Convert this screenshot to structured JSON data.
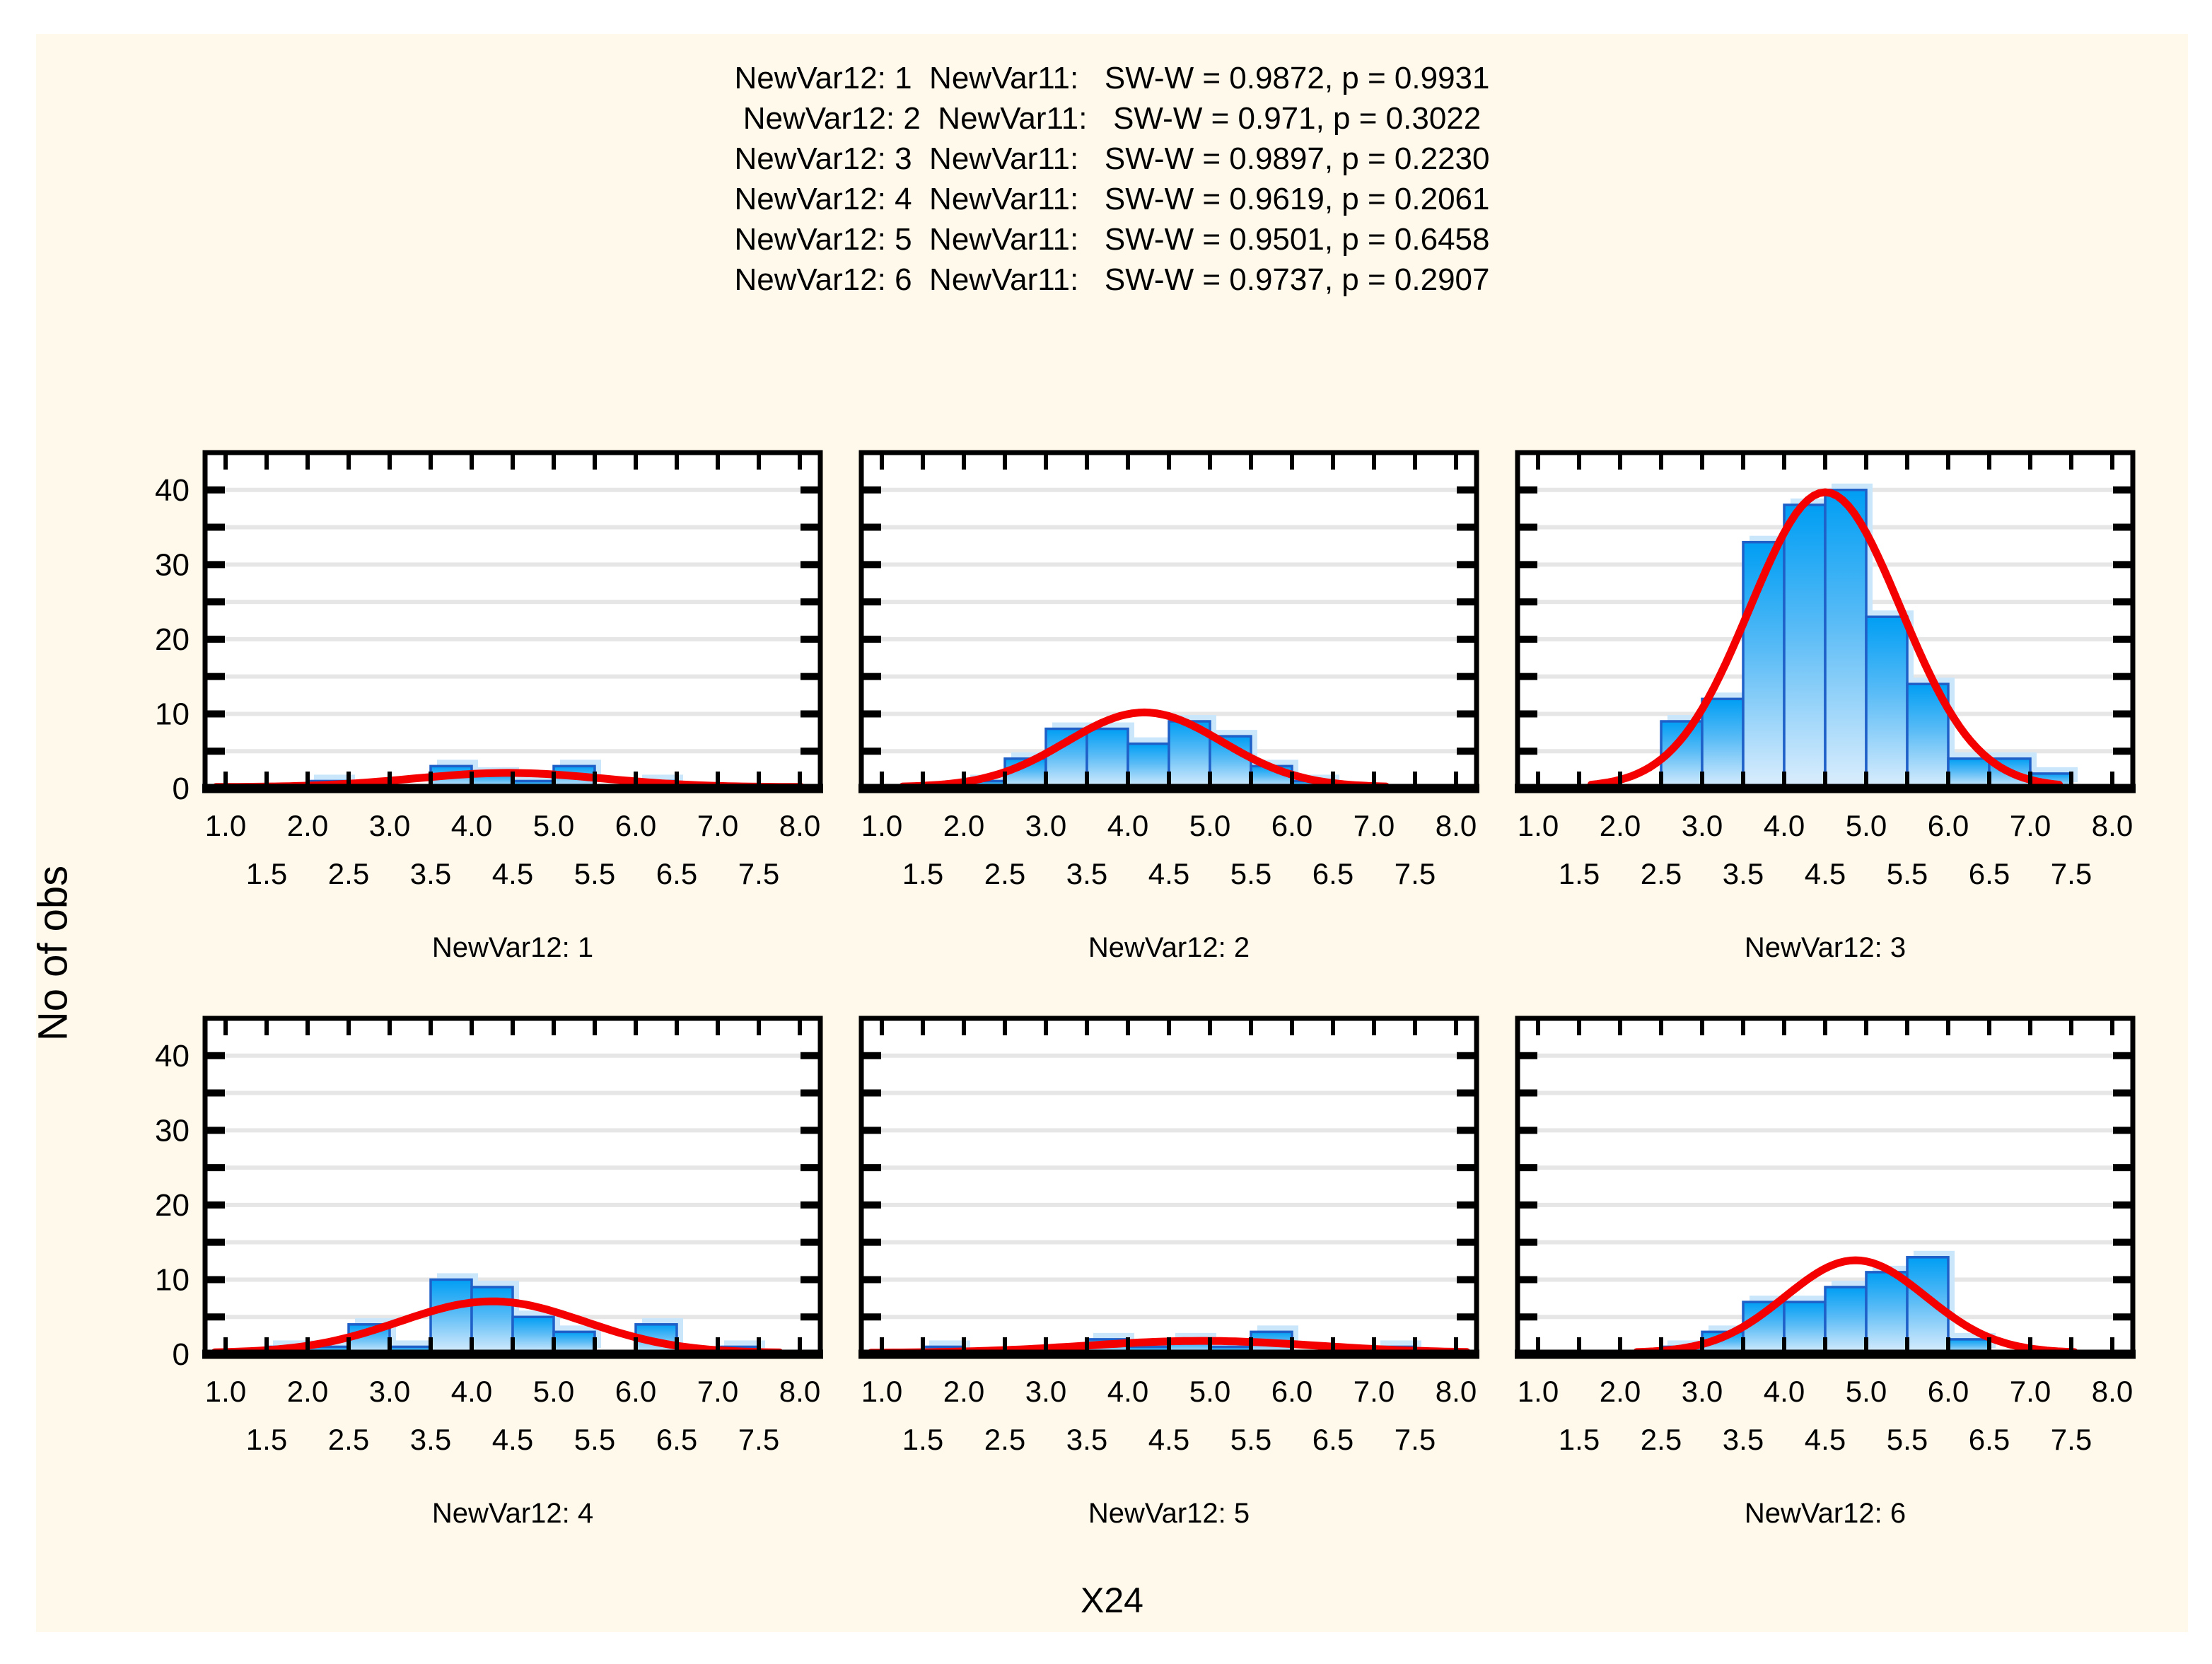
{
  "header": {
    "lines": [
      "NewVar12: 1  NewVar11:   SW-W = 0.9872, p = 0.9931",
      "NewVar12: 2  NewVar11:   SW-W = 0.971, p = 0.3022",
      "NewVar12: 3  NewVar11:   SW-W = 0.9897, p = 0.2230",
      "NewVar12: 4  NewVar11:   SW-W = 0.9619, p = 0.2061",
      "NewVar12: 5  NewVar11:   SW-W = 0.9501, p = 0.6458",
      "NewVar12: 6  NewVar11:   SW-W = 0.9737, p = 0.2907"
    ]
  },
  "ylabel": "No of obs",
  "xlabel": "X24",
  "chart_data": {
    "type": "bar",
    "subtype": "categorized-histograms-with-normal-fit",
    "bin_width": 0.5,
    "xlim": [
      0.75,
      8.25
    ],
    "ylim": [
      0,
      45
    ],
    "xticks_major": [
      "1.0",
      "2.0",
      "3.0",
      "4.0",
      "5.0",
      "6.0",
      "7.0",
      "8.0"
    ],
    "xticks_stagger": [
      "1.5",
      "2.5",
      "3.5",
      "4.5",
      "5.5",
      "6.5",
      "7.5"
    ],
    "xtick_values_major": [
      1.0,
      2.0,
      3.0,
      4.0,
      5.0,
      6.0,
      7.0,
      8.0
    ],
    "xtick_values_stagger": [
      1.5,
      2.5,
      3.5,
      4.5,
      5.5,
      6.5,
      7.5
    ],
    "xtick_step": 0.5,
    "yticks": [
      0,
      10,
      20,
      30,
      40
    ],
    "grid_step": 5,
    "grid_on": true,
    "panels": [
      {
        "caption": "NewVar12: 1",
        "row": 0,
        "col": 0,
        "bins": [
          {
            "x0": 2.0,
            "count": 1
          },
          {
            "x0": 3.5,
            "count": 3
          },
          {
            "x0": 4.0,
            "count": 2
          },
          {
            "x0": 4.5,
            "count": 1
          },
          {
            "x0": 5.0,
            "count": 3
          },
          {
            "x0": 6.0,
            "count": 1
          }
        ],
        "normal_curve": {
          "mean": 4.45,
          "sd": 1.15,
          "peak": 1.9
        }
      },
      {
        "caption": "NewVar12: 2",
        "row": 0,
        "col": 1,
        "bins": [
          {
            "x0": 2.0,
            "count": 1
          },
          {
            "x0": 2.5,
            "count": 4
          },
          {
            "x0": 3.0,
            "count": 8
          },
          {
            "x0": 3.5,
            "count": 8
          },
          {
            "x0": 4.0,
            "count": 6
          },
          {
            "x0": 4.5,
            "count": 9
          },
          {
            "x0": 5.0,
            "count": 7
          },
          {
            "x0": 5.5,
            "count": 3
          },
          {
            "x0": 6.0,
            "count": 1
          }
        ],
        "normal_curve": {
          "mean": 4.2,
          "sd": 0.95,
          "peak": 10.0
        }
      },
      {
        "caption": "NewVar12: 3",
        "row": 0,
        "col": 2,
        "bins": [
          {
            "x0": 2.5,
            "count": 9
          },
          {
            "x0": 3.0,
            "count": 12
          },
          {
            "x0": 3.5,
            "count": 33
          },
          {
            "x0": 4.0,
            "count": 38
          },
          {
            "x0": 4.5,
            "count": 40
          },
          {
            "x0": 5.0,
            "count": 23
          },
          {
            "x0": 5.5,
            "count": 14
          },
          {
            "x0": 6.0,
            "count": 4
          },
          {
            "x0": 6.5,
            "count": 4
          },
          {
            "x0": 7.0,
            "count": 2
          }
        ],
        "normal_curve": {
          "mean": 4.5,
          "sd": 0.92,
          "peak": 39.5
        }
      },
      {
        "caption": "NewVar12: 4",
        "row": 1,
        "col": 0,
        "bins": [
          {
            "x0": 1.5,
            "count": 1
          },
          {
            "x0": 2.0,
            "count": 1
          },
          {
            "x0": 2.5,
            "count": 4
          },
          {
            "x0": 3.0,
            "count": 1
          },
          {
            "x0": 3.5,
            "count": 10
          },
          {
            "x0": 4.0,
            "count": 9
          },
          {
            "x0": 4.5,
            "count": 5
          },
          {
            "x0": 5.0,
            "count": 3
          },
          {
            "x0": 6.0,
            "count": 4
          },
          {
            "x0": 7.0,
            "count": 1
          }
        ],
        "normal_curve": {
          "mean": 4.25,
          "sd": 1.13,
          "peak": 6.9
        }
      },
      {
        "caption": "NewVar12: 5",
        "row": 1,
        "col": 1,
        "bins": [
          {
            "x0": 1.5,
            "count": 1
          },
          {
            "x0": 3.5,
            "count": 2
          },
          {
            "x0": 4.0,
            "count": 1
          },
          {
            "x0": 4.5,
            "count": 2
          },
          {
            "x0": 5.0,
            "count": 1
          },
          {
            "x0": 5.5,
            "count": 3
          },
          {
            "x0": 7.0,
            "count": 1
          }
        ],
        "normal_curve": {
          "mean": 4.9,
          "sd": 1.4,
          "peak": 1.6
        }
      },
      {
        "caption": "NewVar12: 6",
        "row": 1,
        "col": 2,
        "bins": [
          {
            "x0": 2.5,
            "count": 1
          },
          {
            "x0": 3.0,
            "count": 3
          },
          {
            "x0": 3.5,
            "count": 7
          },
          {
            "x0": 4.0,
            "count": 7
          },
          {
            "x0": 4.5,
            "count": 9
          },
          {
            "x0": 5.0,
            "count": 11
          },
          {
            "x0": 5.5,
            "count": 13
          },
          {
            "x0": 6.0,
            "count": 2
          }
        ],
        "normal_curve": {
          "mean": 4.87,
          "sd": 0.86,
          "peak": 12.4
        }
      }
    ],
    "colors": {
      "figure_background": "#FFF9EC",
      "plot_background": "#FFFFFF",
      "gridline": "#E6E6E6",
      "frame": "#000000",
      "bar_fill_top": "#009EF4",
      "bar_fill_mid": "#5BBCF6",
      "bar_fill_bottom": "#DCEEFD",
      "bar_outline": "#1E5FC8",
      "bar_shadow": "#C9E6FB",
      "curve": "#F40000",
      "text": "#000000"
    },
    "legend_position": "none",
    "title": ""
  }
}
